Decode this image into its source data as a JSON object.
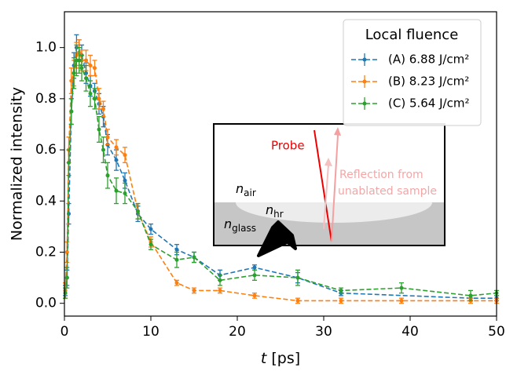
{
  "chart_data": {
    "type": "line",
    "x_label": [
      "t",
      "[ps]"
    ],
    "y_label": "Normalized intensity",
    "xlim": [
      0,
      50
    ],
    "ylim": [
      -0.05,
      1.14
    ],
    "xticks": [
      0,
      10,
      20,
      30,
      40,
      50
    ],
    "yticks": [
      {
        "value": 0,
        "label": "0.0"
      },
      0.2,
      0.4,
      0.6,
      0.8,
      {
        "value": 1,
        "label": "1.0"
      }
    ],
    "legend": {
      "title": "Local fluence",
      "position": "upper right"
    },
    "series": [
      {
        "name": "(A) 6.88 J/cm²",
        "color": "#1f77b4",
        "x": [
          0.1,
          0.3,
          0.5,
          0.8,
          1.1,
          1.4,
          1.7,
          2,
          2.5,
          3,
          3.5,
          4,
          4.5,
          5,
          6,
          7,
          8.5,
          10,
          13,
          15,
          18,
          22,
          27,
          32,
          47,
          50
        ],
        "values": [
          0.05,
          0.1,
          0.35,
          0.75,
          0.93,
          1.0,
          0.98,
          0.97,
          0.9,
          0.85,
          0.83,
          0.78,
          0.73,
          0.62,
          0.56,
          0.48,
          0.35,
          0.29,
          0.21,
          0.18,
          0.11,
          0.14,
          0.1,
          0.04,
          0.02,
          0.02
        ],
        "errors": [
          0.02,
          0.03,
          0.04,
          0.05,
          0.05,
          0.05,
          0.05,
          0.04,
          0.04,
          0.04,
          0.03,
          0.04,
          0.04,
          0.04,
          0.04,
          0.03,
          0.03,
          0.02,
          0.02,
          0.02,
          0.02,
          0.01,
          0.02,
          0.01,
          0.01,
          0.01
        ]
      },
      {
        "name": "(B) 8.23 J/cm²",
        "color": "#ff7f0e",
        "x": [
          0.1,
          0.3,
          0.5,
          0.8,
          1.1,
          1.4,
          1.7,
          2,
          2.5,
          3,
          3.5,
          4,
          4.5,
          5,
          6,
          7,
          8.5,
          10,
          13,
          15,
          18,
          22,
          27,
          32,
          39,
          47,
          50
        ],
        "values": [
          0.05,
          0.2,
          0.6,
          0.87,
          0.9,
          0.97,
          0.98,
          0.95,
          0.95,
          0.93,
          0.92,
          0.8,
          0.76,
          0.65,
          0.61,
          0.58,
          0.36,
          0.24,
          0.08,
          0.05,
          0.05,
          0.03,
          0.01,
          0.01,
          0.01,
          0.01,
          0.01
        ],
        "errors": [
          0.03,
          0.04,
          0.05,
          0.05,
          0.05,
          0.05,
          0.05,
          0.04,
          0.04,
          0.04,
          0.03,
          0.04,
          0.03,
          0.03,
          0.03,
          0.03,
          0.03,
          0.02,
          0.01,
          0.01,
          0.01,
          0.01,
          0.01,
          0.01,
          0.01,
          0.01,
          0.01
        ]
      },
      {
        "name": "(C) 5.64 J/cm²",
        "color": "#2ca02c",
        "x": [
          0.1,
          0.3,
          0.5,
          0.8,
          1.1,
          1.4,
          1.7,
          2,
          2.5,
          3,
          3.5,
          4,
          4.5,
          5,
          6,
          7,
          8.5,
          10,
          13,
          15,
          18,
          22,
          27,
          32,
          39,
          47,
          50
        ],
        "values": [
          0.04,
          0.1,
          0.55,
          0.75,
          0.9,
          0.95,
          0.95,
          0.92,
          0.88,
          0.82,
          0.8,
          0.68,
          0.6,
          0.5,
          0.44,
          0.43,
          0.36,
          0.23,
          0.17,
          0.18,
          0.09,
          0.11,
          0.1,
          0.05,
          0.06,
          0.03,
          0.04
        ],
        "errors": [
          0.02,
          0.04,
          0.05,
          0.05,
          0.06,
          0.06,
          0.05,
          0.05,
          0.05,
          0.05,
          0.04,
          0.05,
          0.05,
          0.05,
          0.05,
          0.04,
          0.03,
          0.02,
          0.03,
          0.02,
          0.02,
          0.02,
          0.03,
          0.01,
          0.02,
          0.02,
          0.01
        ]
      }
    ],
    "inset": {
      "probe": "Probe",
      "reflection": [
        "Reflection from",
        "unablated sample"
      ],
      "indices": [
        {
          "n": "n",
          "sub": "air"
        },
        {
          "n": "n",
          "sub": "hr"
        },
        {
          "n": "n",
          "sub": "glass"
        }
      ]
    }
  }
}
